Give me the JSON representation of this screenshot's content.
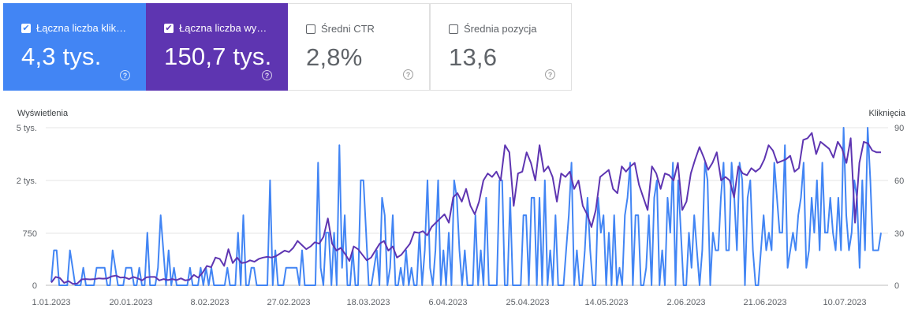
{
  "cards": [
    {
      "label": "Łączna liczba klik…",
      "value": "4,3 tys.",
      "checked": true,
      "color": "#4285f4"
    },
    {
      "label": "Łączna liczba wy…",
      "value": "150,7 tys.",
      "checked": true,
      "color": "#5e35b1"
    },
    {
      "label": "Średni CTR",
      "value": "2,8%",
      "checked": false,
      "color": "#ffffff"
    },
    {
      "label": "Średnia pozycja",
      "value": "13,6",
      "checked": false,
      "color": "#ffffff"
    }
  ],
  "icons": {
    "checked": "checkbox-checked-icon",
    "unchecked": "checkbox-empty-icon",
    "help": "help-circle-icon"
  },
  "chart_data": {
    "type": "line",
    "left_axis_title": "Wyświetlenia",
    "right_axis_title": "Kliknięcia",
    "left_ticks": [
      "5 tys.",
      "2 tys.",
      "750",
      "0"
    ],
    "right_ticks": [
      "90",
      "60",
      "30",
      "0"
    ],
    "x_ticks": [
      "1.01.2023",
      "20.01.2023",
      "8.02.2023",
      "27.02.2023",
      "18.03.2023",
      "6.04.2023",
      "25.04.2023",
      "14.05.2023",
      "2.06.2023",
      "21.06.2023",
      "10.07.2023"
    ],
    "grid": true,
    "series": [
      {
        "name": "Łączna liczba wy…",
        "axis": "left",
        "color": "#5e35b1",
        "values": [
          40,
          120,
          105,
          35,
          60,
          20,
          25,
          85,
          90,
          85,
          90,
          100,
          95,
          100,
          130,
          140,
          110,
          115,
          90,
          120,
          100,
          70,
          115,
          120,
          120,
          70,
          90,
          75,
          90,
          75,
          100,
          70,
          80,
          150,
          110,
          180,
          280,
          260,
          400,
          380,
          280,
          520,
          320,
          400,
          320,
          330,
          360,
          340,
          380,
          400,
          410,
          400,
          420,
          460,
          500,
          480,
          540,
          640,
          580,
          520,
          560,
          620,
          600,
          700,
          1100,
          600,
          500,
          540,
          450,
          350,
          560,
          520,
          440,
          360,
          400,
          500,
          600,
          640,
          500,
          560,
          400,
          440,
          520,
          600,
          780,
          760,
          800,
          720,
          900,
          1000,
          1100,
          1200,
          1000,
          1600,
          1700,
          1500,
          1800,
          1400,
          1200,
          1500,
          2000,
          2400,
          2200,
          2500,
          2000,
          4000,
          3600,
          1400,
          2400,
          2500,
          3600,
          3000,
          2000,
          4000,
          2500,
          2800,
          2200,
          1500,
          2400,
          2200,
          2500,
          1800,
          2000,
          1400,
          1200,
          900,
          1300,
          2200,
          2400,
          2600,
          1800,
          1700,
          2800,
          2500,
          2800,
          3000,
          1900,
          1600,
          1300,
          2800,
          2400,
          1800,
          2400,
          2300,
          2000,
          3000,
          1300,
          1500,
          2400,
          3200,
          3900,
          3300,
          2600,
          3000,
          3600,
          2000,
          2200,
          2000,
          1600,
          2800,
          2400,
          2300,
          2700,
          2500,
          2700,
          3200,
          4000,
          3700,
          3000,
          3100,
          3200,
          3400,
          2500,
          2700,
          4300,
          4400,
          4700,
          3500,
          4200,
          4000,
          3800,
          3300,
          4200,
          3800,
          3000,
          4400,
          1000,
          3000,
          4200,
          4100,
          3700,
          3600,
          3600
        ]
      },
      {
        "name": "Łączna liczba klik…",
        "axis": "right",
        "color": "#4285f4",
        "values": [
          2,
          20,
          20,
          0,
          0,
          0,
          0,
          20,
          10,
          0,
          0,
          0,
          10,
          0,
          0,
          0,
          0,
          10,
          10,
          10,
          10,
          0,
          0,
          20,
          10,
          0,
          0,
          0,
          10,
          10,
          10,
          0,
          0,
          10,
          0,
          0,
          30,
          0,
          0,
          0,
          10,
          40,
          20,
          0,
          20,
          0,
          10,
          0,
          0,
          0,
          0,
          0,
          10,
          0,
          0,
          0,
          10,
          0,
          10,
          0,
          10,
          0,
          0,
          0,
          0,
          0,
          10,
          0,
          0,
          0,
          30,
          0,
          40,
          0,
          0,
          10,
          10,
          0,
          0,
          0,
          0,
          0,
          60,
          0,
          20,
          0,
          0,
          0,
          10,
          10,
          10,
          10,
          10,
          0,
          20,
          0,
          0,
          0,
          0,
          0,
          70,
          10,
          0,
          30,
          30,
          0,
          30,
          0,
          80,
          10,
          40,
          0,
          0,
          20,
          0,
          0,
          60,
          60,
          30,
          0,
          0,
          10,
          20,
          0,
          50,
          40,
          0,
          10,
          40,
          0,
          0,
          10,
          0,
          20,
          0,
          10,
          0,
          0,
          30,
          0,
          20,
          60,
          10,
          0,
          20,
          60,
          0,
          20,
          0,
          30,
          0,
          60,
          50,
          20,
          0,
          20,
          0,
          0,
          0,
          40,
          0,
          20,
          0,
          50,
          0,
          0,
          0,
          0,
          60,
          60,
          0,
          0,
          50,
          0,
          0,
          0,
          0,
          40,
          40,
          0,
          50,
          50,
          0,
          50,
          0,
          60,
          0,
          20,
          0,
          40,
          0,
          0,
          0,
          20,
          40,
          70,
          0,
          20,
          0,
          0,
          20,
          50,
          20,
          0,
          0,
          50,
          30,
          40,
          0,
          30,
          0,
          40,
          0,
          10,
          0,
          40,
          50,
          70,
          0,
          40,
          40,
          0,
          0,
          10,
          40,
          0,
          50,
          60,
          0,
          20,
          0,
          50,
          30,
          70,
          0,
          60,
          30,
          0,
          0,
          30,
          10,
          40,
          20,
          0,
          20,
          70,
          60,
          0,
          30,
          20,
          20,
          50,
          70,
          20,
          20,
          70,
          50,
          20,
          70,
          60,
          0,
          50,
          60,
          20,
          0,
          0,
          20,
          40,
          20,
          30,
          20,
          70,
          50,
          30,
          30,
          80,
          10,
          20,
          30,
          20,
          40,
          50,
          70,
          10,
          20,
          50,
          30,
          60,
          20,
          70,
          30,
          30,
          50,
          30,
          20,
          50,
          20,
          90,
          40,
          20,
          30,
          60,
          50,
          10,
          60,
          20,
          90,
          60,
          20,
          20,
          20,
          30
        ]
      }
    ]
  }
}
